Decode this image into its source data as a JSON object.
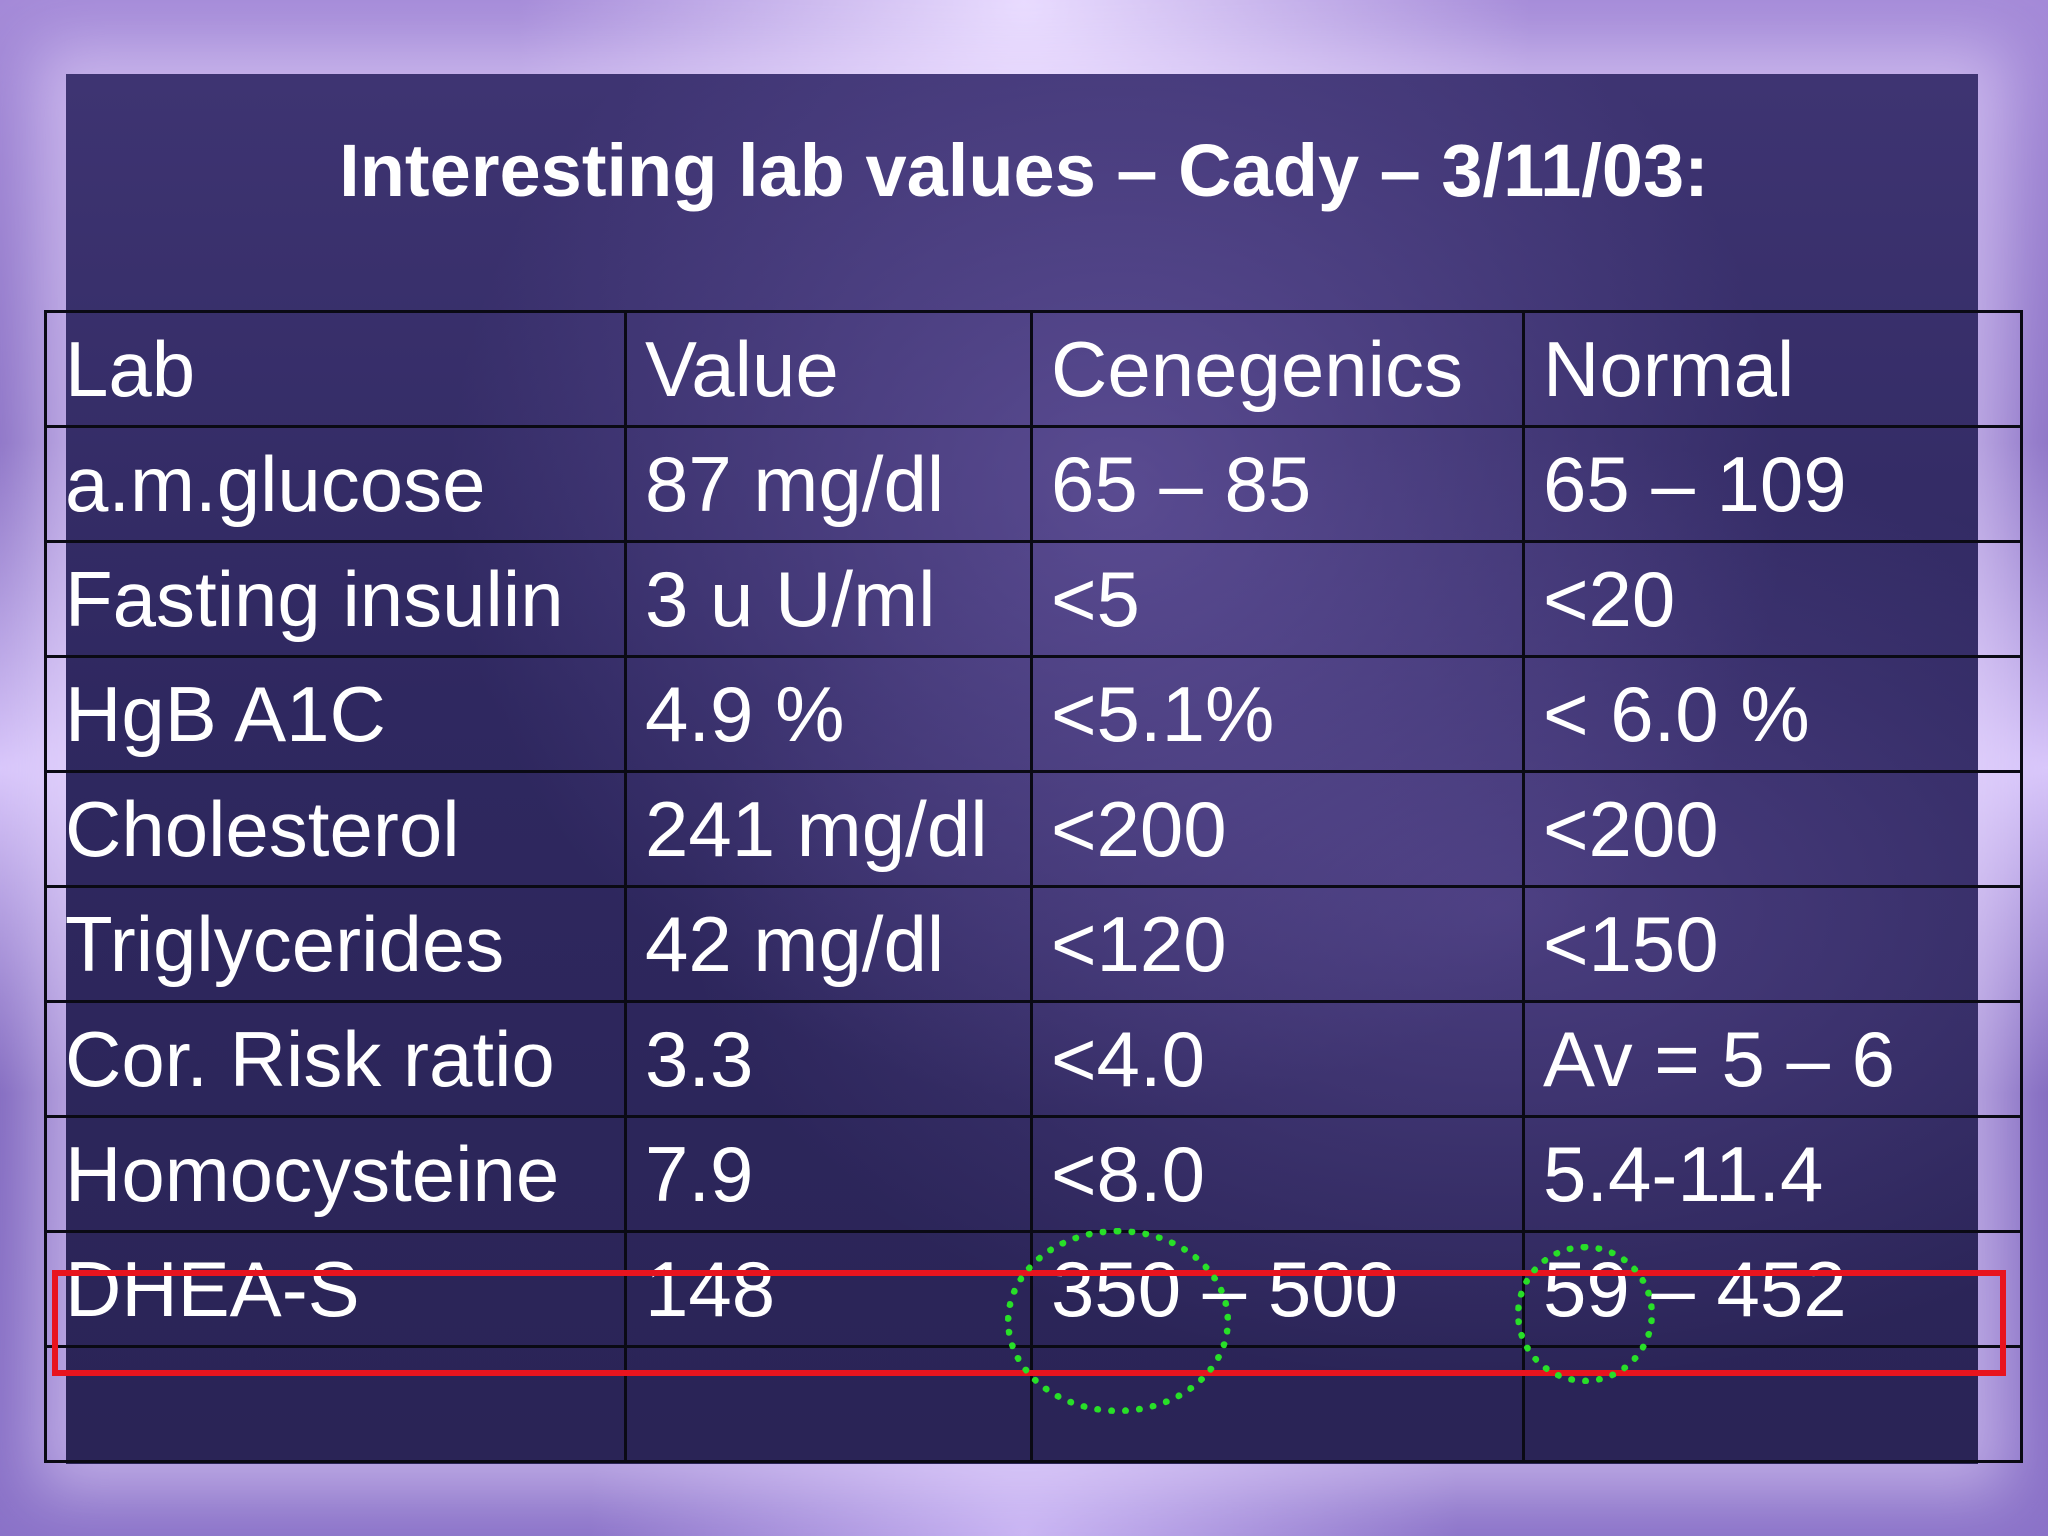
{
  "title": "Interesting lab values – Cady – 3/11/03:",
  "table": {
    "header": [
      "Lab",
      "Value",
      "Cenegenics",
      "Normal"
    ],
    "rows": [
      [
        "a.m.glucose",
        "87 mg/dl",
        "65 – 85",
        "65 – 109"
      ],
      [
        "Fasting insulin",
        "3 u U/ml",
        "<5",
        "<20"
      ],
      [
        "HgB A1C",
        "4.9 %",
        "<5.1%",
        "< 6.0 %"
      ],
      [
        "Cholesterol",
        "241 mg/dl",
        "<200",
        "<200"
      ],
      [
        "Triglycerides",
        "42 mg/dl",
        "<120",
        "<150"
      ],
      [
        "Cor. Risk ratio",
        "3.3",
        "<4.0",
        "Av = 5 – 6"
      ],
      [
        "Homocysteine",
        "7.9",
        "<8.0",
        "5.4-11.4"
      ],
      [
        "DHEA-S",
        "148",
        "350 – 500",
        "59 – 452"
      ],
      [
        "",
        "",
        "",
        ""
      ]
    ]
  },
  "annotations": {
    "highlight_row": "DHEA-S",
    "highlight_color": "#e8141e",
    "circle_color": "#28e028",
    "circled_values": [
      "350",
      "59"
    ]
  }
}
